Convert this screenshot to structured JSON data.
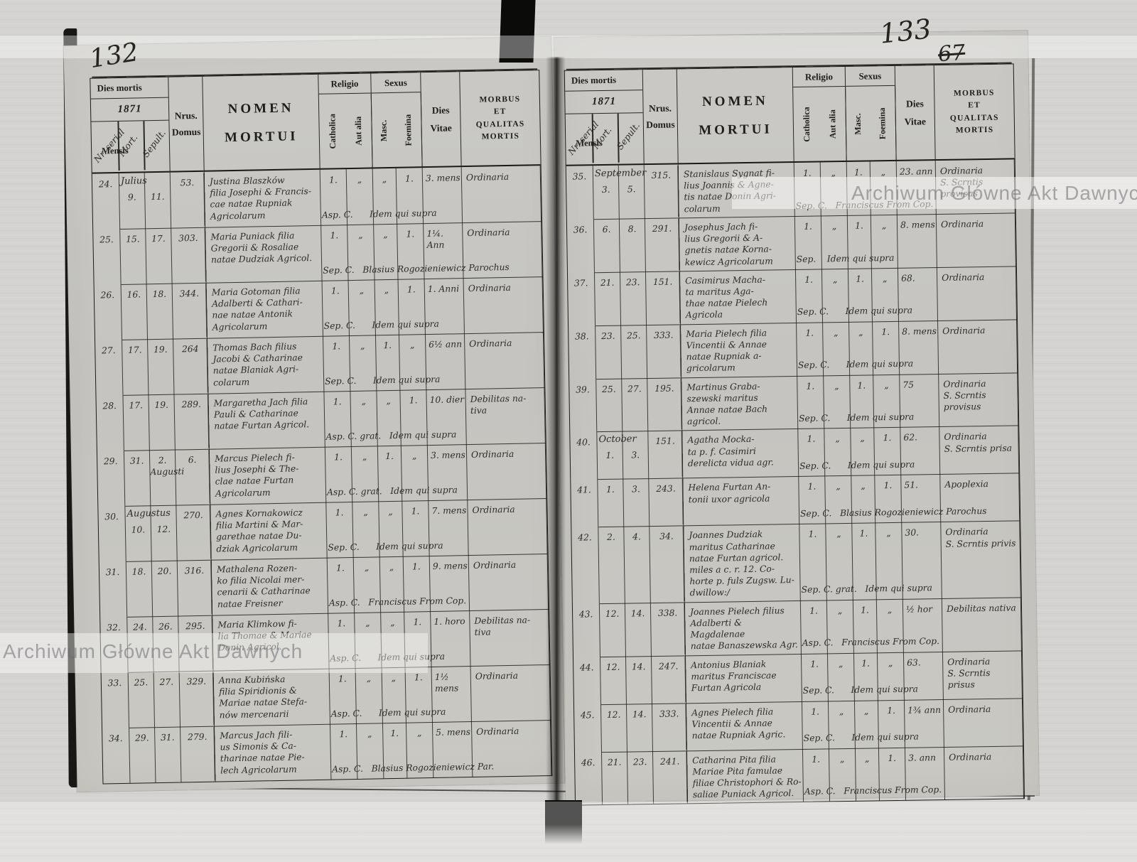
{
  "document": {
    "archive_watermark": "Archiwum Główne Akt Dawnych",
    "left_page_number": "132",
    "right_page_number": "133",
    "right_page_number_struck": "67"
  },
  "header": {
    "dies_mortis": "Dies mortis",
    "year": "1871",
    "nr_serial": "Nr. serial",
    "mensis": "Mensis",
    "mort": "Mort.",
    "sepult": "Sepult.",
    "nrus_domus": "Nrus.\nDomus",
    "nomen_mortui": "NOMEN\nMORTUI",
    "religio": "Religio",
    "catholica": "Catholica",
    "aut_alia": "Aut alia",
    "sexus": "Sexus",
    "masc": "Masc.",
    "foemina": "Foemina",
    "dies_vitae": "Dies\nVitae",
    "morbus_qualitas": "MORBUS\nET\nQUALITAS\nMORTIS"
  },
  "pages": [
    {
      "rows": [
        {
          "nr": "24.",
          "month": "Julius",
          "mort": "9.",
          "sepult": "11.",
          "domus": "53.",
          "nomen": "Justina Blaszków\nfilia Josephi & Francis-\ncae natae Rupniak\nAgricolarum",
          "cath": "1.",
          "alia": "„",
          "masc": "„",
          "foem": "1.",
          "vitae": "3. mens",
          "morbus": "Ordinaria",
          "note": "Asp. C.      Idem qui supra"
        },
        {
          "nr": "25.",
          "mort": "15.",
          "sepult": "17.",
          "domus": "303.",
          "nomen": "Maria Puniack filia\nGregorii & Rosaliae\nnatae Dudziak Agricol.",
          "cath": "1.",
          "alia": "„",
          "masc": "„",
          "foem": "1.",
          "vitae": "1¼. Ann",
          "morbus": "Ordinaria",
          "note": "Sep. C.   Blasius Rogozieniewicz Parochus"
        },
        {
          "nr": "26.",
          "mort": "16.",
          "sepult": "18.",
          "domus": "344.",
          "nomen": "Maria Gotoman filia\nAdalberti & Cathari-\nnae natae Antonik\nAgricolarum",
          "cath": "1.",
          "alia": "„",
          "masc": "„",
          "foem": "1.",
          "vitae": "1. Anni",
          "morbus": "Ordinaria",
          "note": "Sep. C.      Idem qui supra"
        },
        {
          "nr": "27.",
          "mort": "17.",
          "sepult": "19.",
          "domus": "264",
          "nomen": "Thomas Bach filius\nJacobi & Catharinae\nnatae Blaniak Agri-\ncolarum",
          "cath": "1.",
          "alia": "„",
          "masc": "1.",
          "foem": "„",
          "vitae": "6½ ann",
          "morbus": "Ordinaria",
          "note": "Sep. C.      Idem qui supra"
        },
        {
          "nr": "28.",
          "mort": "17.",
          "sepult": "19.",
          "domus": "289.",
          "nomen": "Margaretha Jach filia\nPauli & Catharinae\nnatae Furtan Agricol.",
          "cath": "1.",
          "alia": "„",
          "masc": "„",
          "foem": "1.",
          "vitae": "10. dier",
          "morbus": "Debilitas na-\ntiva",
          "note": "Asp. C. grat.   Idem qui supra"
        },
        {
          "nr": "29.",
          "mort": "31.",
          "sepult": "2.\nAugusti",
          "domus": "6.",
          "nomen": "Marcus Pielech fi-\nlius Josephi & The-\nclae natae Furtan\nAgricolarum",
          "cath": "1.",
          "alia": "„",
          "masc": "1.",
          "foem": "„",
          "vitae": "3. mens",
          "morbus": "Ordinaria",
          "note": "Asp. C. grat.   Idem qui supra"
        },
        {
          "nr": "30.",
          "month": "Augustus",
          "mort": "10.",
          "sepult": "12.",
          "domus": "270.",
          "nomen": "Agnes Kornakowicz\nfilia Martini & Mar-\ngarethae natae Du-\ndziak Agricolarum",
          "cath": "1.",
          "alia": "„",
          "masc": "„",
          "foem": "1.",
          "vitae": "7. mens",
          "morbus": "Ordinaria",
          "note": "Sep. C.      Idem qui supra"
        },
        {
          "nr": "31.",
          "mort": "18.",
          "sepult": "20.",
          "domus": "316.",
          "nomen": "Mathalena Rozen-\nko filia Nicolai mer-\ncenarii & Catharinae\nnatae Freisner",
          "cath": "1.",
          "alia": "„",
          "masc": "„",
          "foem": "1.",
          "vitae": "9. mens",
          "morbus": "Ordinaria",
          "note": "Asp. C.   Franciscus From Cop."
        },
        {
          "nr": "32.",
          "mort": "24.",
          "sepult": "26.",
          "domus": "295.",
          "nomen": "Maria Klimkow fi-\nlia Thomae & Mariae\nDonin Agricol.",
          "cath": "1.",
          "alia": "„",
          "masc": "„",
          "foem": "1.",
          "vitae": "1. horo",
          "morbus": "Debilitas na-\ntiva",
          "note": "Asp. C.      Idem qui supra"
        },
        {
          "nr": "33.",
          "mort": "25.",
          "sepult": "27.",
          "domus": "329.",
          "nomen": "Anna Kubińska\nfilia Spiridionis &\nMariae natae Stefa-\nnów mercenarii",
          "cath": "1.",
          "alia": "„",
          "masc": "„",
          "foem": "1.",
          "vitae": "1½ mens",
          "morbus": "Ordinaria",
          "note": "Asp. C.      Idem qui supra"
        },
        {
          "nr": "34.",
          "mort": "29.",
          "sepult": "31.",
          "domus": "279.",
          "nomen": "Marcus Jach fili-\nus Simonis & Ca-\ntharinae natae Pie-\nlech Agricolarum",
          "cath": "1.",
          "alia": "„",
          "masc": "1.",
          "foem": "„",
          "vitae": "5. mens",
          "morbus": "Ordinaria",
          "note": "Asp. C.   Blasius Rogozieniewicz Par."
        }
      ]
    },
    {
      "rows": [
        {
          "nr": "35.",
          "month": "September",
          "mort": "3.",
          "sepult": "5.",
          "domus": "315.",
          "nomen": "Stanislaus Sygnat fi-\nlius Joannis & Agne-\ntis natae Donin Agri-\ncolarum",
          "cath": "1.",
          "alia": "„",
          "masc": "1.",
          "foem": "„",
          "vitae": "23. ann",
          "morbus": "Ordinaria\nS. Scrntis provisus",
          "note": "Sep. C.   Franciscus From Cop."
        },
        {
          "nr": "36.",
          "mort": "6.",
          "sepult": "8.",
          "domus": "291.",
          "nomen": "Josephus Jach fi-\nlius Gregorii & A-\ngnetis natae Korna-\nkewicz Agricolarum",
          "cath": "1.",
          "alia": "„",
          "masc": "1.",
          "foem": "„",
          "vitae": "8. mens",
          "morbus": "Ordinaria",
          "note": "Sep.    Idem qui supra"
        },
        {
          "nr": "37.",
          "mort": "21.",
          "sepult": "23.",
          "domus": "151.",
          "nomen": "Casimirus Macha-\nta maritus Aga-\nthae natae Pielech\nAgricola",
          "cath": "1.",
          "alia": "„",
          "masc": "1.",
          "foem": "„",
          "vitae": "68.",
          "morbus": "Ordinaria",
          "note": "Sep. C.      Idem qui supra"
        },
        {
          "nr": "38.",
          "mort": "23.",
          "sepult": "25.",
          "domus": "333.",
          "nomen": "Maria Pielech filia\nVincentii & Annae\nnatae Rupniak a-\ngricolarum",
          "cath": "1.",
          "alia": "„",
          "masc": "„",
          "foem": "1.",
          "vitae": "8. mens",
          "morbus": "Ordinaria",
          "note": "Sep. C.      Idem qui supra"
        },
        {
          "nr": "39.",
          "mort": "25.",
          "sepult": "27.",
          "domus": "195.",
          "nomen": "Martinus Graba-\nszewski maritus\nAnnae natae Bach\nagricol.",
          "cath": "1.",
          "alia": "„",
          "masc": "1.",
          "foem": "„",
          "vitae": "75",
          "morbus": "Ordinaria\nS. Scrntis provisus",
          "note": "Sep. C.      Idem qui supra"
        },
        {
          "nr": "40.",
          "month": "October",
          "mort": "1.",
          "sepult": "3.",
          "domus": "151.",
          "nomen": "Agatha Mocka-\nta p. f. Casimiri\nderelicta vidua agr.",
          "cath": "1.",
          "alia": "„",
          "masc": "„",
          "foem": "1.",
          "vitae": "62.",
          "morbus": "Ordinaria\nS. Scrntis prisa",
          "note": "Sep. C.      Idem qui supra"
        },
        {
          "nr": "41.",
          "mort": "1.",
          "sepult": "3.",
          "domus": "243.",
          "nomen": "Helena Furtan An-\ntonii uxor agricola",
          "cath": "1.",
          "alia": "„",
          "masc": "„",
          "foem": "1.",
          "vitae": "51.",
          "morbus": "Apoplexia",
          "note": "Sep. C.   Blasius Rogozieniewicz Parochus"
        },
        {
          "nr": "42.",
          "mort": "2.",
          "sepult": "4.",
          "domus": "34.",
          "nomen": "Joannes Dudziak\nmaritus Catharinae\nnatae Furtan agricol.\nmiles a c. r. 12. Co-\nhorte p. fuls Zugsw. Lu-\ndwillow:/",
          "cath": "1.",
          "alia": "„",
          "masc": "1.",
          "foem": "„",
          "vitae": "30.",
          "morbus": "Ordinaria\nS. Scrntis privis",
          "note": "Sep. C. grat.   Idem qui supra"
        },
        {
          "nr": "43.",
          "mort": "12.",
          "sepult": "14.",
          "domus": "338.",
          "nomen": "Joannes Pielech filius\nAdalberti & Magdalenae\nnatae Banaszewska Agr.",
          "cath": "1.",
          "alia": "„",
          "masc": "1.",
          "foem": "„",
          "vitae": "½ hor",
          "morbus": "Debilitas nativa",
          "note": "Asp. C.   Franciscus From Cop."
        },
        {
          "nr": "44.",
          "mort": "12.",
          "sepult": "14.",
          "domus": "247.",
          "nomen": "Antonius Blaniak\nmaritus Franciscae\nFurtan Agricola",
          "cath": "1.",
          "alia": "„",
          "masc": "1.",
          "foem": "„",
          "vitae": "63.",
          "morbus": "Ordinaria\nS. Scrntis prisus",
          "note": "Sep. C.      Idem qui supra"
        },
        {
          "nr": "45.",
          "mort": "12.",
          "sepult": "14.",
          "domus": "333.",
          "nomen": "Agnes Pielech filia\nVincentii & Annae\nnatae Rupniak Agric.",
          "cath": "1.",
          "alia": "„",
          "masc": "„",
          "foem": "1.",
          "vitae": "1¾ ann",
          "morbus": "Ordinaria",
          "note": "Sep. C.      Idem qui supra"
        },
        {
          "nr": "46.",
          "mort": "21.",
          "sepult": "23.",
          "domus": "241.",
          "nomen": "Catharina Pita filia\nMariae Pita famulae\nfiliae Christophori & Ro-\nsaliae Puniack Agricol.",
          "cath": "1.",
          "alia": "„",
          "masc": "„",
          "foem": "1.",
          "vitae": "3. ann",
          "morbus": "Ordinaria",
          "note": "Asp. C.   Franciscus From Cop."
        }
      ]
    }
  ]
}
